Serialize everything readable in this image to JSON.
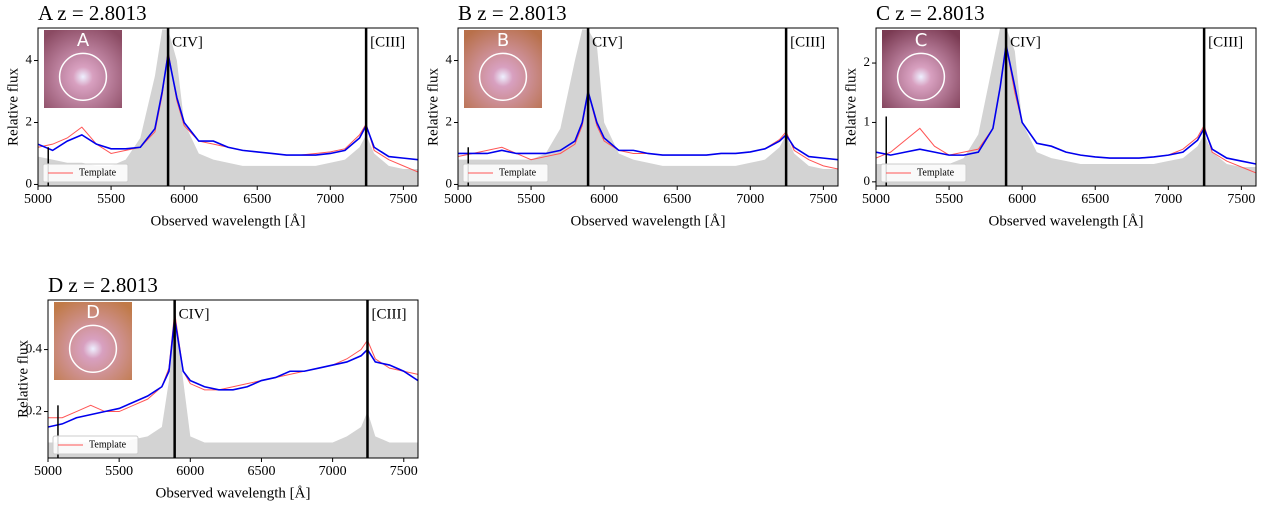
{
  "chart_data": [
    {
      "type": "line",
      "title": "A z = 2.8013",
      "xlabel": "Observed wavelength [Å]",
      "ylabel": "Relative flux",
      "x": [
        5000,
        5100,
        5200,
        5300,
        5400,
        5500,
        5600,
        5700,
        5800,
        5850,
        5890,
        5950,
        6000,
        6100,
        6200,
        6300,
        6400,
        6500,
        6600,
        6700,
        6800,
        6900,
        7000,
        7100,
        7200,
        7245,
        7300,
        7400,
        7500,
        7600
      ],
      "xlim": [
        5000,
        7600
      ],
      "xticks": [
        5000,
        5500,
        6000,
        6500,
        7000,
        7500
      ],
      "ylim": [
        -0.05,
        5.05
      ],
      "yticks": [
        0,
        2,
        4
      ],
      "legend": "lower left",
      "inset": {
        "label": "A",
        "color": "#8a4a62"
      },
      "vlines": [
        {
          "x": 5890,
          "label": "CIV]"
        },
        {
          "x": 7245,
          "label": "[CIII]"
        },
        {
          "x": 5070,
          "ymax": 1.2
        }
      ],
      "series": [
        {
          "style": "area",
          "color": "#d3d3d3",
          "values": [
            0.9,
            0.8,
            0.7,
            0.7,
            0.6,
            0.6,
            0.8,
            1.5,
            3.5,
            5.0,
            5.0,
            4.0,
            2.0,
            1.0,
            0.8,
            0.7,
            0.6,
            0.6,
            0.6,
            0.6,
            0.6,
            0.6,
            0.7,
            0.8,
            1.2,
            1.6,
            1.0,
            0.6,
            0.5,
            0.5
          ]
        },
        {
          "color": "#ff5555",
          "values": [
            1.2,
            1.3,
            1.5,
            1.85,
            1.3,
            1.0,
            1.1,
            1.2,
            1.7,
            2.9,
            4.3,
            2.7,
            1.9,
            1.4,
            1.3,
            1.2,
            1.1,
            1.05,
            1.0,
            0.95,
            0.95,
            1.0,
            1.05,
            1.15,
            1.6,
            1.95,
            1.1,
            0.8,
            0.6,
            0.4
          ],
          "name": "Template"
        },
        {
          "color": "#0000ee",
          "values": [
            1.3,
            1.1,
            1.4,
            1.6,
            1.3,
            1.15,
            1.15,
            1.2,
            1.8,
            3.0,
            4.2,
            2.8,
            2.0,
            1.4,
            1.4,
            1.2,
            1.1,
            1.05,
            1.0,
            0.95,
            0.95,
            0.95,
            1.0,
            1.1,
            1.5,
            1.9,
            1.2,
            0.9,
            0.85,
            0.8
          ]
        }
      ]
    },
    {
      "type": "line",
      "title": "B z = 2.8013",
      "xlabel": "Observed wavelength [Å]",
      "ylabel": "Relative flux",
      "x": [
        5000,
        5100,
        5200,
        5300,
        5400,
        5500,
        5600,
        5700,
        5800,
        5850,
        5890,
        5950,
        6000,
        6100,
        6200,
        6300,
        6400,
        6500,
        6600,
        6700,
        6800,
        6900,
        7000,
        7100,
        7200,
        7245,
        7300,
        7400,
        7500,
        7600
      ],
      "xlim": [
        5000,
        7600
      ],
      "xticks": [
        5000,
        5500,
        6000,
        6500,
        7000,
        7500
      ],
      "ylim": [
        -0.05,
        5.05
      ],
      "yticks": [
        0,
        2,
        4
      ],
      "legend": "lower left",
      "inset": {
        "label": "B",
        "color": "#b8704a"
      },
      "vlines": [
        {
          "x": 5890,
          "label": "CIV]"
        },
        {
          "x": 7245,
          "label": "[CIII]"
        },
        {
          "x": 5070,
          "ymax": 1.2
        }
      ],
      "series": [
        {
          "style": "area",
          "color": "#d3d3d3",
          "values": [
            0.8,
            0.8,
            0.8,
            0.8,
            0.8,
            0.8,
            1.0,
            1.8,
            4.0,
            5.0,
            5.0,
            4.5,
            2.0,
            1.0,
            0.8,
            0.7,
            0.6,
            0.6,
            0.6,
            0.6,
            0.6,
            0.6,
            0.7,
            0.8,
            1.2,
            1.6,
            1.0,
            0.6,
            0.5,
            0.5
          ]
        },
        {
          "color": "#ff5555",
          "values": [
            0.9,
            1.0,
            1.1,
            1.2,
            1.0,
            0.8,
            0.9,
            1.0,
            1.3,
            1.9,
            3.0,
            1.9,
            1.4,
            1.1,
            1.0,
            1.0,
            0.95,
            0.95,
            0.95,
            0.95,
            1.0,
            1.0,
            1.05,
            1.15,
            1.45,
            1.7,
            1.1,
            0.8,
            0.6,
            0.5
          ],
          "name": "Template"
        },
        {
          "color": "#0000ee",
          "values": [
            1.0,
            1.0,
            1.0,
            1.1,
            1.0,
            1.0,
            1.0,
            1.1,
            1.4,
            2.0,
            3.0,
            2.0,
            1.5,
            1.1,
            1.1,
            1.0,
            0.95,
            0.95,
            0.95,
            0.95,
            1.0,
            1.0,
            1.05,
            1.15,
            1.4,
            1.6,
            1.2,
            0.9,
            0.85,
            0.8
          ]
        }
      ]
    },
    {
      "type": "line",
      "title": "C z = 2.8013",
      "xlabel": "Observed wavelength [Å]",
      "ylabel": "Relative flux",
      "x": [
        5000,
        5100,
        5200,
        5300,
        5400,
        5500,
        5600,
        5700,
        5800,
        5850,
        5890,
        5950,
        6000,
        6100,
        6200,
        6300,
        6400,
        6500,
        6600,
        6700,
        6800,
        6900,
        7000,
        7100,
        7200,
        7245,
        7300,
        7400,
        7500,
        7600
      ],
      "xlim": [
        5000,
        7600
      ],
      "xticks": [
        5000,
        5500,
        6000,
        6500,
        7000,
        7500
      ],
      "ylim": [
        -0.07,
        2.59
      ],
      "yticks": [
        0,
        1,
        2
      ],
      "legend": "lower left",
      "inset": {
        "label": "C",
        "color": "#7a3a52"
      },
      "vlines": [
        {
          "x": 5890,
          "label": "CIV]"
        },
        {
          "x": 7245,
          "label": "[CIII]"
        },
        {
          "x": 5070,
          "ymax": 1.1
        }
      ],
      "series": [
        {
          "style": "area",
          "color": "#d3d3d3",
          "values": [
            0.3,
            0.3,
            0.3,
            0.3,
            0.3,
            0.3,
            0.4,
            0.8,
            2.0,
            2.6,
            2.6,
            2.2,
            1.0,
            0.5,
            0.4,
            0.35,
            0.3,
            0.3,
            0.3,
            0.3,
            0.3,
            0.3,
            0.35,
            0.4,
            0.6,
            0.8,
            0.5,
            0.3,
            0.25,
            0.25
          ]
        },
        {
          "color": "#ff5555",
          "values": [
            0.4,
            0.5,
            0.7,
            0.9,
            0.6,
            0.45,
            0.5,
            0.55,
            0.9,
            1.6,
            2.3,
            1.5,
            1.0,
            0.65,
            0.6,
            0.5,
            0.45,
            0.42,
            0.4,
            0.4,
            0.4,
            0.42,
            0.45,
            0.55,
            0.75,
            0.95,
            0.5,
            0.35,
            0.25,
            0.15
          ],
          "name": "Template"
        },
        {
          "color": "#0000ee",
          "values": [
            0.5,
            0.45,
            0.5,
            0.55,
            0.5,
            0.45,
            0.45,
            0.5,
            0.9,
            1.6,
            2.3,
            1.6,
            1.0,
            0.65,
            0.6,
            0.5,
            0.45,
            0.42,
            0.4,
            0.4,
            0.4,
            0.42,
            0.45,
            0.5,
            0.7,
            0.9,
            0.55,
            0.4,
            0.35,
            0.3
          ]
        }
      ]
    },
    {
      "type": "line",
      "title": "D z = 2.8013",
      "xlabel": "Observed wavelength [Å]",
      "ylabel": "Relative flux",
      "x": [
        5000,
        5100,
        5200,
        5300,
        5400,
        5500,
        5600,
        5700,
        5800,
        5850,
        5890,
        5950,
        6000,
        6100,
        6200,
        6300,
        6400,
        6500,
        6600,
        6700,
        6800,
        6900,
        7000,
        7100,
        7200,
        7245,
        7300,
        7400,
        7500,
        7600
      ],
      "xlim": [
        5000,
        7600
      ],
      "xticks": [
        5000,
        5500,
        6000,
        6500,
        7000,
        7500
      ],
      "ylim": [
        0.05,
        0.56
      ],
      "yticks": [
        0.2,
        0.4
      ],
      "legend": "lower left",
      "inset": {
        "label": "D",
        "color": "#c07a48"
      },
      "vlines": [
        {
          "x": 5890,
          "label": "CIV]"
        },
        {
          "x": 7245,
          "label": "[CIII]"
        },
        {
          "x": 5070,
          "ymax": 0.22
        }
      ],
      "series": [
        {
          "style": "area",
          "color": "#d3d3d3",
          "values": [
            0.1,
            0.1,
            0.1,
            0.1,
            0.1,
            0.1,
            0.11,
            0.12,
            0.15,
            0.3,
            0.52,
            0.3,
            0.12,
            0.1,
            0.1,
            0.1,
            0.1,
            0.1,
            0.1,
            0.1,
            0.1,
            0.1,
            0.1,
            0.12,
            0.15,
            0.2,
            0.12,
            0.1,
            0.1,
            0.1
          ]
        },
        {
          "color": "#ff5555",
          "values": [
            0.18,
            0.18,
            0.2,
            0.22,
            0.2,
            0.2,
            0.22,
            0.24,
            0.28,
            0.34,
            0.52,
            0.33,
            0.29,
            0.27,
            0.27,
            0.28,
            0.29,
            0.3,
            0.31,
            0.32,
            0.33,
            0.34,
            0.35,
            0.37,
            0.4,
            0.43,
            0.37,
            0.34,
            0.33,
            0.32
          ],
          "name": "Template"
        },
        {
          "color": "#0000ee",
          "values": [
            0.15,
            0.16,
            0.18,
            0.19,
            0.2,
            0.21,
            0.23,
            0.25,
            0.28,
            0.33,
            0.5,
            0.33,
            0.3,
            0.28,
            0.27,
            0.27,
            0.28,
            0.3,
            0.31,
            0.33,
            0.33,
            0.34,
            0.35,
            0.36,
            0.38,
            0.4,
            0.36,
            0.35,
            0.33,
            0.3
          ]
        }
      ]
    }
  ]
}
